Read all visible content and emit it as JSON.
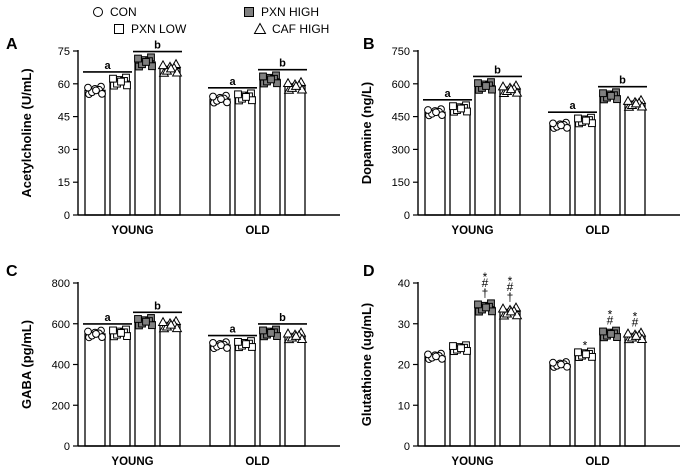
{
  "legend": {
    "position": "top",
    "entries": [
      {
        "label": "CON",
        "marker": "circle",
        "fill": "#ffffff"
      },
      {
        "label": "PXN LOW",
        "marker": "square",
        "fill": "#ffffff"
      },
      {
        "label": "PXN HIGH",
        "marker": "square",
        "fill": "#808080"
      },
      {
        "label": "CAF HIGH",
        "marker": "triangle",
        "fill": "#ffffff"
      }
    ]
  },
  "colors": {
    "bar_fill": "#ffffff",
    "bar_stroke": "#000000",
    "filled_marker": "#808080"
  },
  "chart_data": [
    {
      "panel": "A",
      "type": "bar",
      "categories": [
        "YOUNG",
        "OLD"
      ],
      "ylabel": "Acetylcholine (U/mL)",
      "ylim": [
        0,
        75
      ],
      "yticks": [
        0,
        15,
        30,
        45,
        60,
        75
      ],
      "grid": false,
      "series": [
        {
          "name": "CON",
          "values": [
            57,
            53
          ]
        },
        {
          "name": "PXN LOW",
          "values": [
            61,
            54
          ]
        },
        {
          "name": "PXN HIGH",
          "values": [
            70,
            62
          ]
        },
        {
          "name": "CAF HIGH",
          "values": [
            67,
            59
          ]
        }
      ],
      "significance": [
        {
          "label": "a",
          "category": "YOUNG",
          "series": [
            "CON",
            "PXN LOW"
          ]
        },
        {
          "label": "b",
          "category": "YOUNG",
          "series": [
            "PXN HIGH",
            "CAF HIGH"
          ]
        },
        {
          "label": "a",
          "category": "OLD",
          "series": [
            "CON",
            "PXN LOW"
          ]
        },
        {
          "label": "b",
          "category": "OLD",
          "series": [
            "PXN HIGH",
            "CAF HIGH"
          ]
        }
      ]
    },
    {
      "panel": "B",
      "type": "bar",
      "categories": [
        "YOUNG",
        "OLD"
      ],
      "ylabel": "Dopamine (ng/L)",
      "ylim": [
        0,
        750
      ],
      "yticks": [
        0,
        150,
        300,
        450,
        600,
        750
      ],
      "grid": false,
      "series": [
        {
          "name": "CON",
          "values": [
            470,
            410
          ]
        },
        {
          "name": "PXN LOW",
          "values": [
            487,
            432
          ]
        },
        {
          "name": "PXN HIGH",
          "values": [
            590,
            545
          ]
        },
        {
          "name": "CAF HIGH",
          "values": [
            575,
            510
          ]
        }
      ],
      "significance": [
        {
          "label": "a",
          "category": "YOUNG",
          "series": [
            "CON",
            "PXN LOW"
          ]
        },
        {
          "label": "b",
          "category": "YOUNG",
          "series": [
            "PXN HIGH",
            "CAF HIGH"
          ]
        },
        {
          "label": "a",
          "category": "OLD",
          "series": [
            "CON",
            "PXN LOW"
          ]
        },
        {
          "label": "b",
          "category": "OLD",
          "series": [
            "PXN HIGH",
            "CAF HIGH"
          ]
        }
      ]
    },
    {
      "panel": "C",
      "type": "bar",
      "categories": [
        "YOUNG",
        "OLD"
      ],
      "ylabel": "GABA (pg/mL)",
      "ylim": [
        0,
        800
      ],
      "yticks": [
        0,
        200,
        400,
        600,
        800
      ],
      "grid": false,
      "series": [
        {
          "name": "CON",
          "values": [
            550,
            495
          ]
        },
        {
          "name": "PXN LOW",
          "values": [
            555,
            500
          ]
        },
        {
          "name": "PXN HIGH",
          "values": [
            610,
            555
          ]
        },
        {
          "name": "CAF HIGH",
          "values": [
            595,
            540
          ]
        }
      ],
      "significance": [
        {
          "label": "a",
          "category": "YOUNG",
          "series": [
            "CON",
            "PXN LOW"
          ]
        },
        {
          "label": "b",
          "category": "YOUNG",
          "series": [
            "PXN HIGH",
            "CAF HIGH"
          ]
        },
        {
          "label": "a",
          "category": "OLD",
          "series": [
            "CON",
            "PXN LOW"
          ]
        },
        {
          "label": "b",
          "category": "OLD",
          "series": [
            "PXN HIGH",
            "CAF HIGH"
          ]
        }
      ]
    },
    {
      "panel": "D",
      "type": "bar",
      "categories": [
        "YOUNG",
        "OLD"
      ],
      "ylabel": "Glutathione (ug/mL)",
      "ylim": [
        0,
        40
      ],
      "yticks": [
        0,
        10,
        20,
        30,
        40
      ],
      "grid": false,
      "series": [
        {
          "name": "CON",
          "values": [
            22,
            20
          ]
        },
        {
          "name": "PXN LOW",
          "values": [
            24,
            22.5
          ]
        },
        {
          "name": "PXN HIGH",
          "values": [
            34,
            27.5
          ]
        },
        {
          "name": "CAF HIGH",
          "values": [
            33,
            27
          ]
        }
      ],
      "annotations": [
        {
          "category": "YOUNG",
          "series": "PXN HIGH",
          "marks": [
            "*",
            "#",
            "†"
          ]
        },
        {
          "category": "YOUNG",
          "series": "CAF HIGH",
          "marks": [
            "*",
            "#",
            "†"
          ]
        },
        {
          "category": "OLD",
          "series": "PXN LOW",
          "marks": [
            "*"
          ]
        },
        {
          "category": "OLD",
          "series": "PXN HIGH",
          "marks": [
            "*",
            "#"
          ]
        },
        {
          "category": "OLD",
          "series": "CAF HIGH",
          "marks": [
            "*",
            "#"
          ]
        }
      ]
    }
  ]
}
